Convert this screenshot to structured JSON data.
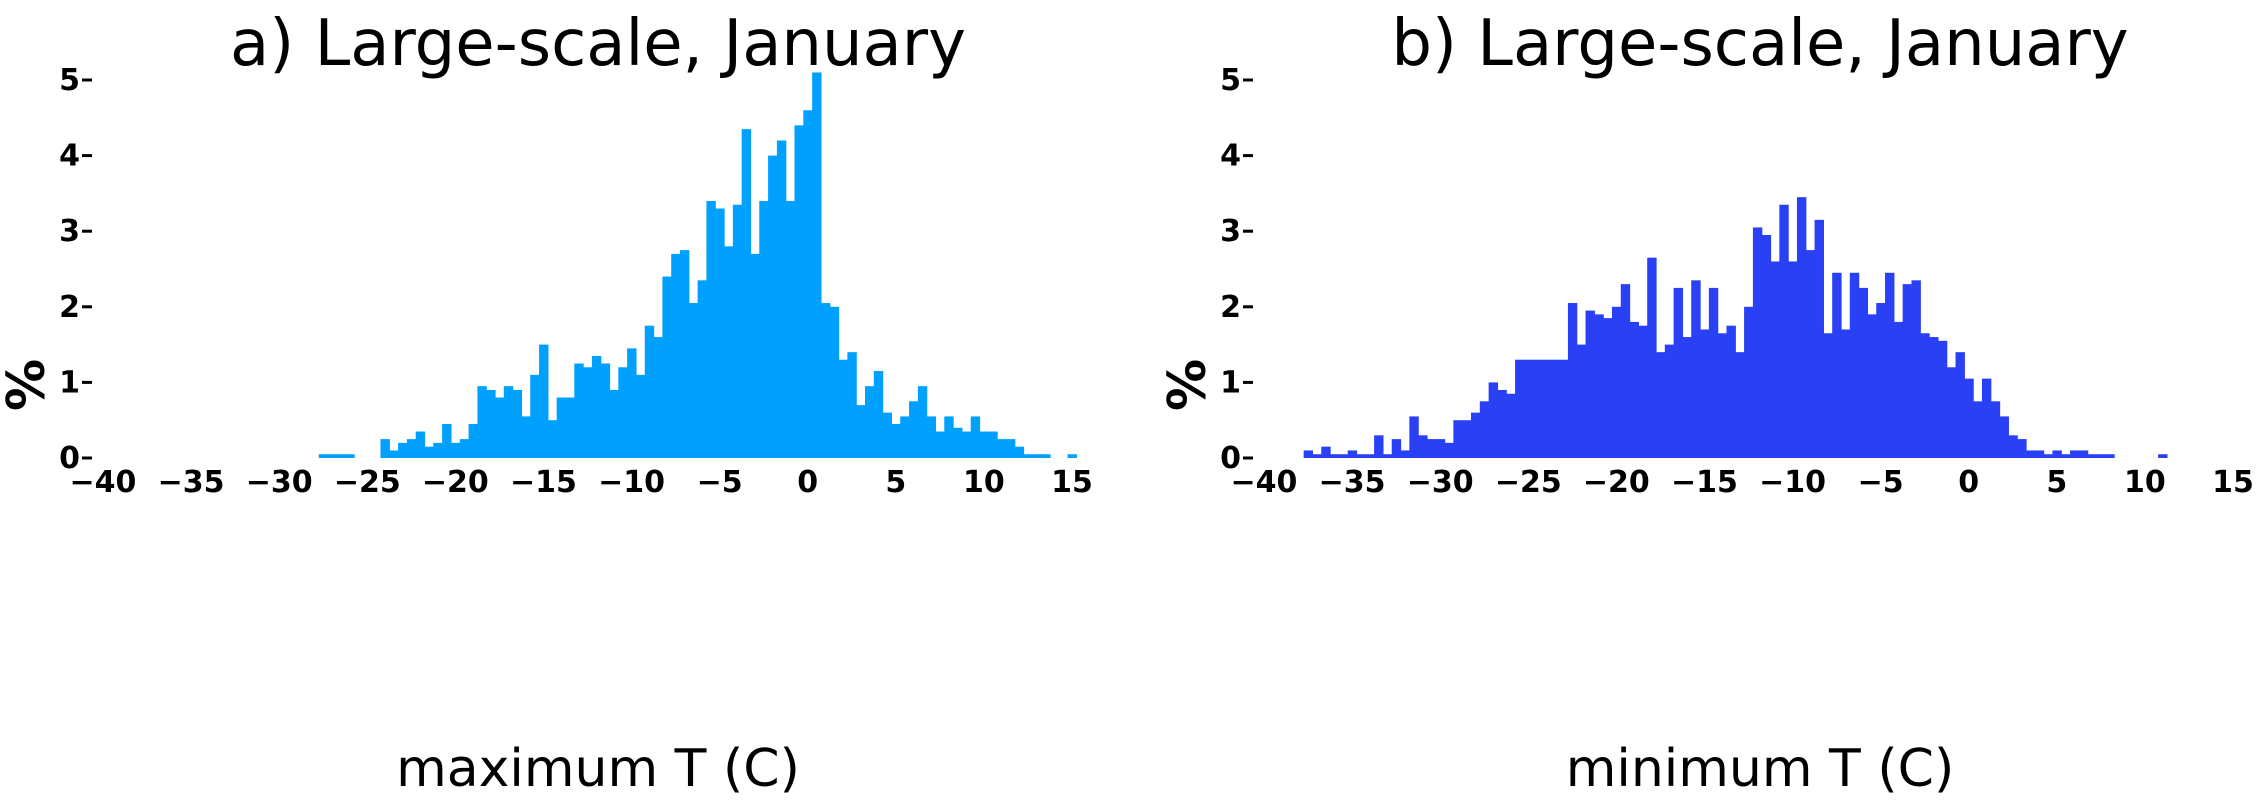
{
  "chart_data": [
    {
      "type": "bar",
      "title": "a) Large-scale, January",
      "xlabel": "maximum T (C)",
      "ylabel": "%",
      "xlim": [
        -40,
        15
      ],
      "ylim": [
        0,
        5
      ],
      "xticks": [
        "-40",
        "-35",
        "-30",
        "-25",
        "-20",
        "-15",
        "-10",
        "-5",
        "0",
        "5",
        "10",
        "15"
      ],
      "yticks": [
        "0",
        "1",
        "2",
        "3",
        "4",
        "5"
      ],
      "bin_width": 0.5,
      "color": "#00a0ff",
      "series": [
        {
          "x": [
            -27.5,
            -27,
            -26.5,
            -26,
            -24,
            -23.5,
            -23,
            -22.5,
            -22,
            -21.5,
            -21,
            -20.5,
            -20,
            -19.5,
            -19,
            -18.5,
            -18,
            -17.5,
            -17,
            -16.5,
            -16,
            -15.5,
            -15,
            -14.5,
            -14,
            -13.5,
            -13,
            -12.5,
            -12,
            -11.5,
            -11,
            -10.5,
            -10,
            -9.5,
            -9,
            -8.5,
            -8,
            -7.5,
            -7,
            -6.5,
            -6,
            -5.5,
            -5,
            -4.5,
            -4,
            -3.5,
            -3,
            -2.5,
            -2,
            -1.5,
            -1,
            -0.5,
            0,
            0.5,
            1,
            1.5,
            2,
            2.5,
            3,
            3.5,
            4,
            4.5,
            5,
            5.5,
            6,
            6.5,
            7,
            7.5,
            8,
            8.5,
            9,
            9.5,
            10,
            10.5,
            11,
            11.5,
            12,
            12.5,
            13,
            13.5,
            15
          ],
          "values": [
            0.05,
            0.05,
            0.05,
            0.05,
            0.25,
            0.1,
            0.2,
            0.25,
            0.35,
            0.15,
            0.2,
            0.45,
            0.2,
            0.25,
            0.45,
            0.95,
            0.9,
            0.8,
            0.95,
            0.9,
            0.55,
            1.1,
            1.5,
            0.5,
            0.8,
            0.8,
            1.25,
            1.2,
            1.35,
            1.25,
            0.9,
            1.2,
            1.45,
            1.1,
            1.75,
            1.6,
            2.4,
            2.7,
            2.75,
            2.05,
            2.35,
            3.4,
            3.3,
            2.8,
            3.35,
            4.35,
            2.7,
            3.4,
            4.0,
            4.2,
            3.4,
            4.4,
            4.6,
            5.1,
            2.05,
            2.0,
            1.3,
            1.4,
            0.7,
            0.95,
            1.15,
            0.6,
            0.45,
            0.55,
            0.75,
            0.95,
            0.55,
            0.35,
            0.55,
            0.4,
            0.35,
            0.55,
            0.35,
            0.35,
            0.25,
            0.25,
            0.15,
            0.05,
            0.05,
            0.05,
            0.05
          ]
        }
      ]
    },
    {
      "type": "bar",
      "title": "b) Large-scale, January",
      "xlabel": "minimum T (C)",
      "ylabel": "%",
      "xlim": [
        -40,
        15
      ],
      "ylim": [
        0,
        5
      ],
      "xticks": [
        "-40",
        "-35",
        "-30",
        "-25",
        "-20",
        "-15",
        "-10",
        "-5",
        "0",
        "5",
        "10",
        "15"
      ],
      "yticks": [
        "0",
        "1",
        "2",
        "3",
        "4",
        "5"
      ],
      "bin_width": 0.5,
      "color": "#2a40f5",
      "series": [
        {
          "x": [
            -37.5,
            -37,
            -36.5,
            -36,
            -35.5,
            -35,
            -34.5,
            -34,
            -33.5,
            -33,
            -32.5,
            -32,
            -31.5,
            -31,
            -30.5,
            -30,
            -29.5,
            -29,
            -28.5,
            -28,
            -27.5,
            -27,
            -26.5,
            -26,
            -25.5,
            -25,
            -24.5,
            -24,
            -23.5,
            -23,
            -22.5,
            -22,
            -21.5,
            -21,
            -20.5,
            -20,
            -19.5,
            -19,
            -18.5,
            -18,
            -17.5,
            -17,
            -16.5,
            -16,
            -15.5,
            -15,
            -14.5,
            -14,
            -13.5,
            -13,
            -12.5,
            -12,
            -11.5,
            -11,
            -10.5,
            -10,
            -9.5,
            -9,
            -8.5,
            -8,
            -7.5,
            -7,
            -6.5,
            -6,
            -5.5,
            -5,
            -4.5,
            -4,
            -3.5,
            -3,
            -2.5,
            -2,
            -1.5,
            -1,
            -0.5,
            0,
            0.5,
            1,
            1.5,
            2,
            2.5,
            3,
            3.5,
            4,
            4.5,
            5,
            5.5,
            6,
            6.5,
            7,
            7.5,
            8,
            11
          ],
          "values": [
            0.1,
            0.05,
            0.15,
            0.05,
            0.05,
            0.1,
            0.05,
            0.05,
            0.3,
            0.05,
            0.25,
            0.1,
            0.55,
            0.3,
            0.25,
            0.25,
            0.2,
            0.5,
            0.5,
            0.6,
            0.75,
            1.0,
            0.9,
            0.85,
            1.3,
            1.3,
            1.3,
            1.3,
            1.3,
            1.3,
            2.05,
            1.5,
            1.95,
            1.9,
            1.85,
            2.0,
            2.3,
            1.8,
            1.75,
            2.65,
            1.4,
            1.5,
            2.25,
            1.6,
            2.35,
            1.7,
            2.25,
            1.65,
            1.75,
            1.4,
            2.0,
            3.05,
            2.95,
            2.6,
            3.35,
            2.6,
            3.45,
            2.75,
            3.15,
            1.65,
            2.45,
            1.7,
            2.45,
            2.25,
            1.9,
            2.05,
            2.45,
            1.8,
            2.3,
            2.35,
            1.65,
            1.6,
            1.55,
            1.2,
            1.4,
            1.05,
            0.75,
            1.05,
            0.75,
            0.55,
            0.3,
            0.25,
            0.1,
            0.1,
            0.05,
            0.1,
            0.05,
            0.1,
            0.1,
            0.05,
            0.05,
            0.05,
            0.05
          ]
        }
      ]
    }
  ]
}
